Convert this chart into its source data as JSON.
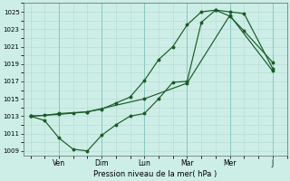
{
  "xlabel": "Pression niveau de la mer( hPa )",
  "bg_color": "#cceee6",
  "grid_color": "#aad8d0",
  "line_color": "#1a5c28",
  "ylim": [
    1008.5,
    1026.0
  ],
  "yticks": [
    1009,
    1011,
    1013,
    1015,
    1017,
    1019,
    1021,
    1023,
    1025
  ],
  "x_day_labels": [
    "Ven",
    "Dim",
    "Lun",
    "Mar",
    "Mer",
    "J"
  ],
  "x_day_positions": [
    16,
    40,
    64,
    88,
    112,
    136
  ],
  "line1_x": [
    0,
    8,
    16,
    24,
    32,
    40,
    48,
    56,
    64,
    72,
    80,
    88,
    96,
    104,
    112,
    120,
    136
  ],
  "line1_y": [
    1013,
    1012.5,
    1010.5,
    1009.2,
    1009.0,
    1010.8,
    1012.0,
    1013.0,
    1013.3,
    1015.0,
    1016.9,
    1017.0,
    1023.8,
    1025.2,
    1025.0,
    1024.8,
    1018.5
  ],
  "line2_x": [
    0,
    8,
    16,
    24,
    32,
    40,
    48,
    56,
    64,
    72,
    80,
    88,
    96,
    104,
    112,
    120,
    136
  ],
  "line2_y": [
    1013,
    1013.1,
    1013.3,
    1013.4,
    1013.5,
    1013.8,
    1014.5,
    1015.2,
    1017.1,
    1019.5,
    1021.0,
    1023.5,
    1025.0,
    1025.2,
    1024.5,
    1022.8,
    1019.2
  ],
  "line3_x": [
    0,
    16,
    32,
    64,
    88,
    112,
    136
  ],
  "line3_y": [
    1013,
    1013.2,
    1013.5,
    1015.0,
    1016.8,
    1024.6,
    1018.2
  ]
}
